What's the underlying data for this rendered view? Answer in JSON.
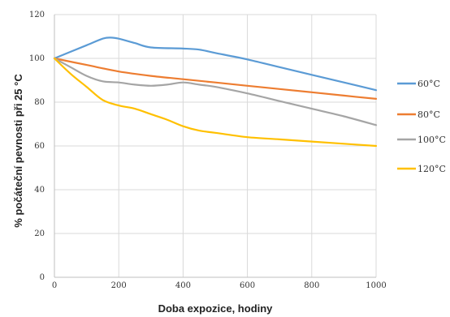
{
  "chart_data": {
    "type": "line",
    "xlabel": "Doba expozice, hodiny",
    "ylabel": "% počáteční pevnosti při 25 °C",
    "xlim": [
      0,
      1000
    ],
    "ylim": [
      0,
      120
    ],
    "xticks": [
      0,
      200,
      400,
      600,
      800,
      1000
    ],
    "yticks": [
      0,
      20,
      40,
      60,
      80,
      100,
      120
    ],
    "grid": "vertical and horizontal",
    "legend_position": "right",
    "series": [
      {
        "name": "60°C",
        "color": "#5B9BD5",
        "points": [
          [
            0,
            100
          ],
          [
            50,
            103
          ],
          [
            100,
            106
          ],
          [
            150,
            109
          ],
          [
            175,
            109.5
          ],
          [
            200,
            109
          ],
          [
            250,
            107
          ],
          [
            300,
            105
          ],
          [
            400,
            104.5
          ],
          [
            450,
            104
          ],
          [
            500,
            102.5
          ],
          [
            600,
            99.5
          ],
          [
            700,
            96
          ],
          [
            800,
            92.5
          ],
          [
            900,
            89
          ],
          [
            1000,
            85.5
          ]
        ]
      },
      {
        "name": "80°C",
        "color": "#ED7D31",
        "points": [
          [
            0,
            100
          ],
          [
            100,
            97
          ],
          [
            200,
            94
          ],
          [
            300,
            92
          ],
          [
            400,
            90.5
          ],
          [
            500,
            89
          ],
          [
            600,
            87.5
          ],
          [
            700,
            86
          ],
          [
            800,
            84.5
          ],
          [
            900,
            83
          ],
          [
            1000,
            81.5
          ]
        ]
      },
      {
        "name": "100°C",
        "color": "#A5A5A5",
        "points": [
          [
            0,
            100
          ],
          [
            50,
            96
          ],
          [
            100,
            92
          ],
          [
            150,
            89.5
          ],
          [
            200,
            89
          ],
          [
            250,
            88
          ],
          [
            300,
            87.5
          ],
          [
            350,
            88
          ],
          [
            400,
            89
          ],
          [
            450,
            88
          ],
          [
            500,
            87
          ],
          [
            600,
            84
          ],
          [
            700,
            80.5
          ],
          [
            800,
            77
          ],
          [
            900,
            73.5
          ],
          [
            1000,
            69.5
          ]
        ]
      },
      {
        "name": "120°C",
        "color": "#FFC000",
        "points": [
          [
            0,
            100
          ],
          [
            50,
            93
          ],
          [
            100,
            87
          ],
          [
            150,
            81
          ],
          [
            200,
            78.5
          ],
          [
            250,
            77
          ],
          [
            300,
            74.5
          ],
          [
            350,
            72
          ],
          [
            400,
            69
          ],
          [
            450,
            67
          ],
          [
            500,
            66
          ],
          [
            600,
            64
          ],
          [
            700,
            63
          ],
          [
            800,
            62
          ],
          [
            900,
            61
          ],
          [
            1000,
            60
          ]
        ]
      }
    ]
  }
}
